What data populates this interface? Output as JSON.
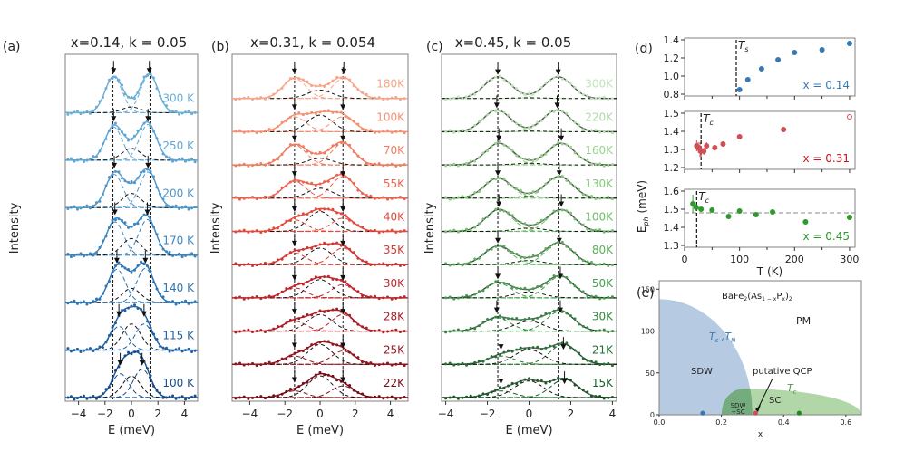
{
  "chart_data": [
    {
      "id": "a",
      "panel_label": "(a)",
      "type": "line",
      "title": "x=0.14, k = 0.05",
      "xlabel": "E (meV)",
      "ylabel": "Intensity",
      "xlim": [
        -5,
        5
      ],
      "xticks": [
        -4,
        -2,
        0,
        2,
        4
      ],
      "xtick_labels": [
        "−4",
        "−2",
        "0",
        "2",
        "4"
      ],
      "vlines": [
        -1.4,
        1.4
      ],
      "series": [
        {
          "name": "300 K",
          "color": "#6aaed6",
          "peaks": [
            -1.35,
            1.35
          ],
          "arrows": [
            -1.35,
            1.35
          ],
          "amp": [
            0.75,
            0.8
          ],
          "central": 0.12
        },
        {
          "name": "250 K",
          "color": "#5fa4d2",
          "peaks": [
            -1.35,
            1.25
          ],
          "arrows": [
            -1.35,
            1.25
          ],
          "amp": [
            0.7,
            0.75
          ],
          "central": 0.25
        },
        {
          "name": "200 K",
          "color": "#4f97cb",
          "peaks": [
            -1.3,
            1.25
          ],
          "arrows": [
            -1.3,
            1.25
          ],
          "amp": [
            0.7,
            0.75
          ],
          "central": 0.3
        },
        {
          "name": "170 K",
          "color": "#3c86c0",
          "peaks": [
            -1.25,
            1.2
          ],
          "arrows": [
            -1.25,
            1.2
          ],
          "amp": [
            0.7,
            0.75
          ],
          "central": 0.35
        },
        {
          "name": "140 K",
          "color": "#2d75b5",
          "peaks": [
            -1.1,
            1.05
          ],
          "arrows": [
            -1.1,
            1.05
          ],
          "amp": [
            0.7,
            0.72
          ],
          "central": 0.3
        },
        {
          "name": "115 K",
          "color": "#21609f",
          "peaks": [
            -0.95,
            0.95
          ],
          "arrows": [
            -0.95,
            0.95
          ],
          "amp": [
            0.5,
            0.55
          ],
          "central": 0.55
        },
        {
          "name": "100 K",
          "color": "#1a4c88",
          "peaks": [
            -0.85,
            0.8
          ],
          "arrows": [
            -0.85,
            0.8
          ],
          "amp": [
            0.5,
            0.6
          ],
          "central": 0.45
        }
      ]
    },
    {
      "id": "b",
      "panel_label": "(b)",
      "type": "line",
      "title": "x=0.31, k = 0.054",
      "xlabel": "E (meV)",
      "ylabel": "Intensity",
      "xlim": [
        -5,
        5
      ],
      "xticks": [
        -4,
        -2,
        0,
        2,
        4
      ],
      "xtick_labels": [
        "−4",
        "−2",
        "0",
        "2",
        "4"
      ],
      "vlines": [
        -1.45,
        1.3
      ],
      "series": [
        {
          "name": "180K",
          "color": "#f7a58a",
          "peaks": [
            -1.45,
            1.35
          ],
          "arrows": [
            -1.45,
            1.35
          ],
          "amp": [
            0.6,
            0.6
          ],
          "central": 0.25
        },
        {
          "name": "100K",
          "color": "#f69072",
          "peaks": [
            -1.45,
            1.3
          ],
          "arrows": [
            -1.45,
            1.3
          ],
          "amp": [
            0.45,
            0.45
          ],
          "central": 0.5
        },
        {
          "name": "70K",
          "color": "#f27b5e",
          "peaks": [
            -1.45,
            1.3
          ],
          "arrows": [
            -1.45,
            1.3
          ],
          "amp": [
            0.6,
            0.65
          ],
          "central": 0.2
        },
        {
          "name": "55K",
          "color": "#ec6450",
          "peaks": [
            -1.45,
            1.3
          ],
          "arrows": [
            -1.45,
            1.3
          ],
          "amp": [
            0.5,
            0.65
          ],
          "central": 0.3
        },
        {
          "name": "40K",
          "color": "#e34a3d",
          "peaks": [
            -1.45,
            1.3
          ],
          "arrows": [
            -1.45,
            1.3
          ],
          "amp": [
            0.35,
            0.4
          ],
          "central": 0.6
        },
        {
          "name": "35K",
          "color": "#d43530",
          "peaks": [
            -1.45,
            1.3
          ],
          "arrows": [
            -1.45,
            1.3
          ],
          "amp": [
            0.35,
            0.5
          ],
          "central": 0.5
        },
        {
          "name": "30K",
          "color": "#c0252a",
          "peaks": [
            -1.45,
            1.3
          ],
          "arrows": [
            -1.45,
            1.3
          ],
          "amp": [
            0.3,
            0.4
          ],
          "central": 0.55
        },
        {
          "name": "28K",
          "color": "#ad1c24",
          "peaks": [
            -1.45,
            1.3
          ],
          "arrows": [
            -1.45,
            1.3
          ],
          "amp": [
            0.3,
            0.5
          ],
          "central": 0.5
        },
        {
          "name": "25K",
          "color": "#92141d",
          "peaks": [
            -1.45,
            1.3
          ],
          "arrows": [
            -1.45,
            1.3
          ],
          "amp": [
            0.25,
            0.4
          ],
          "central": 0.6
        },
        {
          "name": "22K",
          "color": "#760c15",
          "peaks": [
            -1.45,
            1.3
          ],
          "arrows": [
            -1.45,
            1.3
          ],
          "amp": [
            0.2,
            0.35
          ],
          "central": 0.65
        }
      ]
    },
    {
      "id": "c",
      "panel_label": "(c)",
      "type": "line",
      "title": "x=0.45, k = 0.05",
      "xlabel": "E (meV)",
      "ylabel": "Intensity",
      "xlim": [
        -4.2,
        4.2
      ],
      "xticks": [
        -4,
        -2,
        0,
        2,
        4
      ],
      "xtick_labels": [
        "−4",
        "−2",
        "0",
        "2",
        "4"
      ],
      "vlines": [
        -1.5,
        1.4
      ],
      "series": [
        {
          "name": "300K",
          "color": "#c2e5bc",
          "peaks": [
            -1.5,
            1.4
          ],
          "arrows": [
            -1.5,
            1.4
          ],
          "amp": [
            0.65,
            0.65
          ],
          "central": 0.02
        },
        {
          "name": "220K",
          "color": "#aedca6",
          "peaks": [
            -1.55,
            1.35
          ],
          "arrows": [
            -1.55,
            1.35
          ],
          "amp": [
            0.65,
            0.65
          ],
          "central": 0.02
        },
        {
          "name": "160K",
          "color": "#9ad38f",
          "peaks": [
            -1.45,
            1.55
          ],
          "arrows": [
            -1.45,
            1.55
          ],
          "amp": [
            0.65,
            0.65
          ],
          "central": 0.05
        },
        {
          "name": "130K",
          "color": "#85c97b",
          "peaks": [
            -1.5,
            1.45
          ],
          "arrows": [
            -1.5,
            1.45
          ],
          "amp": [
            0.6,
            0.65
          ],
          "central": 0.05
        },
        {
          "name": "100K",
          "color": "#6fbd6a",
          "peaks": [
            -1.45,
            1.55
          ],
          "arrows": [
            -1.45,
            1.55
          ],
          "amp": [
            0.65,
            0.65
          ],
          "central": 0.1
        },
        {
          "name": "80K",
          "color": "#58b05a",
          "peaks": [
            -1.5,
            1.45
          ],
          "arrows": [
            -1.5,
            1.45
          ],
          "amp": [
            0.55,
            0.65
          ],
          "central": 0.12
        },
        {
          "name": "50K",
          "color": "#43a04b",
          "peaks": [
            -1.5,
            1.5
          ],
          "arrows": [
            -1.5,
            1.5
          ],
          "amp": [
            0.45,
            0.65
          ],
          "central": 0.18
        },
        {
          "name": "30K",
          "color": "#2f8a3d",
          "peaks": [
            -1.55,
            1.5
          ],
          "arrows": [
            -1.55,
            1.5
          ],
          "amp": [
            0.4,
            0.6
          ],
          "central": 0.3
        },
        {
          "name": "21K",
          "color": "#21722f",
          "peaks": [
            -1.35,
            1.65
          ],
          "arrows": [
            -1.35,
            1.65
          ],
          "amp": [
            0.25,
            0.6
          ],
          "central": 0.45
        },
        {
          "name": "15K",
          "color": "#155c25",
          "peaks": [
            -1.35,
            1.7
          ],
          "arrows": [
            -1.35,
            1.7
          ],
          "amp": [
            0.2,
            0.55
          ],
          "central": 0.5
        }
      ]
    },
    {
      "id": "d",
      "panel_label": "(d)",
      "type": "scatter",
      "xlabel": "T (K)",
      "ylabel": "E_ph (meV)",
      "xlim": [
        0,
        310
      ],
      "xticks": [
        0,
        100,
        200,
        300
      ],
      "xtick_labels": [
        "0",
        "100",
        "200",
        "300"
      ],
      "subplots": [
        {
          "label": "x = 0.14",
          "color": "#3a78b5",
          "ylim": [
            0.78,
            1.42
          ],
          "yticks": [
            0.8,
            1.0,
            1.2,
            1.4
          ],
          "ytick_labels": [
            "0.8",
            "1.0",
            "1.2",
            "1.4"
          ],
          "vline": 94,
          "vline_label": "T_s",
          "points": [
            [
              100,
              0.85
            ],
            [
              115,
              0.96
            ],
            [
              140,
              1.08
            ],
            [
              170,
              1.18
            ],
            [
              200,
              1.26
            ],
            [
              250,
              1.29
            ],
            [
              300,
              1.36
            ]
          ],
          "open_points": [],
          "hline": null
        },
        {
          "label": "x = 0.31",
          "color": "#cf4f56",
          "label_color": "#c8171e",
          "ylim": [
            1.19,
            1.51
          ],
          "yticks": [
            1.2,
            1.3,
            1.4,
            1.5
          ],
          "ytick_labels": [
            "1.2",
            "1.3",
            "1.4",
            "1.5"
          ],
          "vline": 30,
          "vline_label": "T_c",
          "points": [
            [
              22,
              1.32
            ],
            [
              25,
              1.31
            ],
            [
              28,
              1.3
            ],
            [
              30,
              1.29
            ],
            [
              35,
              1.29
            ],
            [
              40,
              1.32
            ],
            [
              55,
              1.31
            ],
            [
              70,
              1.33
            ],
            [
              100,
              1.37
            ],
            [
              180,
              1.41
            ]
          ],
          "errors": [
            0.03,
            0.03,
            0.04,
            0.03,
            0.02,
            0.02,
            0.01,
            0.01,
            0.01,
            0.01
          ],
          "open_points": [
            [
              300,
              1.48
            ]
          ],
          "hline": null
        },
        {
          "label": "x = 0.45",
          "color": "#2e9a2c",
          "ylim": [
            1.29,
            1.61
          ],
          "yticks": [
            1.3,
            1.4,
            1.5,
            1.6
          ],
          "ytick_labels": [
            "1.3",
            "1.4",
            "1.5",
            "1.6"
          ],
          "vline": 22,
          "vline_label": "T_c",
          "points": [
            [
              15,
              1.53
            ],
            [
              21,
              1.51
            ],
            [
              30,
              1.5
            ],
            [
              50,
              1.495
            ],
            [
              80,
              1.46
            ],
            [
              100,
              1.49
            ],
            [
              130,
              1.47
            ],
            [
              160,
              1.485
            ],
            [
              220,
              1.43
            ],
            [
              300,
              1.455
            ]
          ],
          "errors": [
            0.05,
            0.02,
            0.01,
            0.01,
            0.01,
            0.01,
            0.01,
            0.01,
            0.01,
            0.01
          ],
          "open_points": [],
          "hline": 1.48
        }
      ]
    },
    {
      "id": "e",
      "panel_label": "(e)",
      "type": "area",
      "title": "BaFe2(As1-xPx)2",
      "xlabel": "x",
      "ylabel": "",
      "xlim": [
        0,
        0.65
      ],
      "ylim": [
        0,
        160
      ],
      "xticks": [
        0.0,
        0.2,
        0.4,
        0.6
      ],
      "xtick_labels": [
        "0.0",
        "0.2",
        "0.4",
        "0.6"
      ],
      "yticks": [
        0,
        50,
        100,
        150
      ],
      "ytick_labels": [
        "0",
        "50",
        "100",
        "150"
      ],
      "regions": [
        {
          "name": "SDW",
          "color": "#a9c2dd"
        },
        {
          "name": "SDW+SC",
          "color": "#6fa77a"
        },
        {
          "name": "SC",
          "color": "#a8d3a0"
        },
        {
          "name": "PM",
          "color": "#ffffff"
        }
      ],
      "ts_tn_curve": {
        "x0": 0.0,
        "T0": 138,
        "x_end": 0.3
      },
      "tc_dome": {
        "x_start": 0.2,
        "x_peak": 0.27,
        "Tc_max": 31,
        "x_end": 0.65
      },
      "annotations": {
        "formula": "BaFe₂(As₁₋ₓPₓ)₂",
        "pm": "PM",
        "sdw": "SDW",
        "sdw_sc": [
          "SDW",
          "+SC"
        ],
        "sc": "SC",
        "ts_tn": "T_s , T_N",
        "tc": "T_c",
        "qcp": "putative QCP"
      },
      "markers": [
        {
          "x": 0.14,
          "color": "#3a78b5"
        },
        {
          "x": 0.31,
          "color": "#cf4f56"
        },
        {
          "x": 0.45,
          "color": "#1e8a1e"
        }
      ]
    }
  ]
}
